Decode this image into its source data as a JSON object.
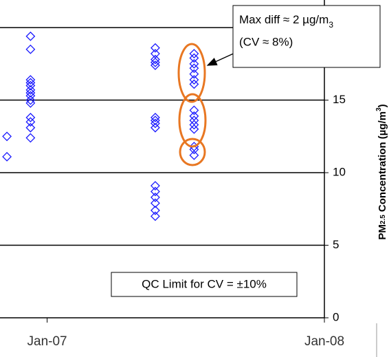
{
  "chart_data": {
    "type": "scatter",
    "y_label": [
      "PM",
      "2.5",
      " Concentration (µg/m",
      "3",
      ")"
    ],
    "x": [
      2006.855,
      2006.855,
      2006.94,
      2006.94,
      2006.94,
      2006.94,
      2006.94,
      2006.94,
      2006.94,
      2006.94,
      2006.94,
      2006.94,
      2006.94,
      2006.94,
      2006.94,
      2006.94,
      2007.39,
      2007.39,
      2007.39,
      2007.39,
      2007.39,
      2007.39,
      2007.39,
      2007.39,
      2007.39,
      2007.39,
      2007.39,
      2007.39,
      2007.39,
      2007.39,
      2007.39,
      2007.53,
      2007.53,
      2007.53,
      2007.53,
      2007.53,
      2007.53,
      2007.53,
      2007.53,
      2007.53,
      2007.53,
      2007.53,
      2007.53,
      2007.53,
      2007.53,
      2007.53
    ],
    "values": [
      12.5,
      11.1,
      19.4,
      18.5,
      16.4,
      16.2,
      16.0,
      15.7,
      15.5,
      15.3,
      15.0,
      14.8,
      13.8,
      13.5,
      13.1,
      12.4,
      18.6,
      18.2,
      17.8,
      17.6,
      17.4,
      13.8,
      13.6,
      13.4,
      13.1,
      9.1,
      8.7,
      8.3,
      7.9,
      7.4,
      7.0,
      18.2,
      17.9,
      17.5,
      17.2,
      16.8,
      16.4,
      16.1,
      14.3,
      13.9,
      13.6,
      13.3,
      13.0,
      11.8,
      11.6,
      11.2
    ],
    "color": "#1a1aff",
    "xlim": [
      2006.83,
      2008.0
    ],
    "xticks": [
      {
        "value": 2007.0,
        "label": "Jan-07"
      },
      {
        "value": 2008.0,
        "label": "Jan-08"
      }
    ],
    "ylim": [
      0,
      21.9
    ],
    "yticks": [
      0,
      5,
      10,
      15,
      20
    ],
    "grid": true,
    "annotations": [
      [
        "Max diff ≈ 2 µg/m",
        "3"
      ],
      [
        "(CV ≈ 8%)"
      ],
      [
        "QC Limit for CV = ±10%"
      ]
    ]
  }
}
